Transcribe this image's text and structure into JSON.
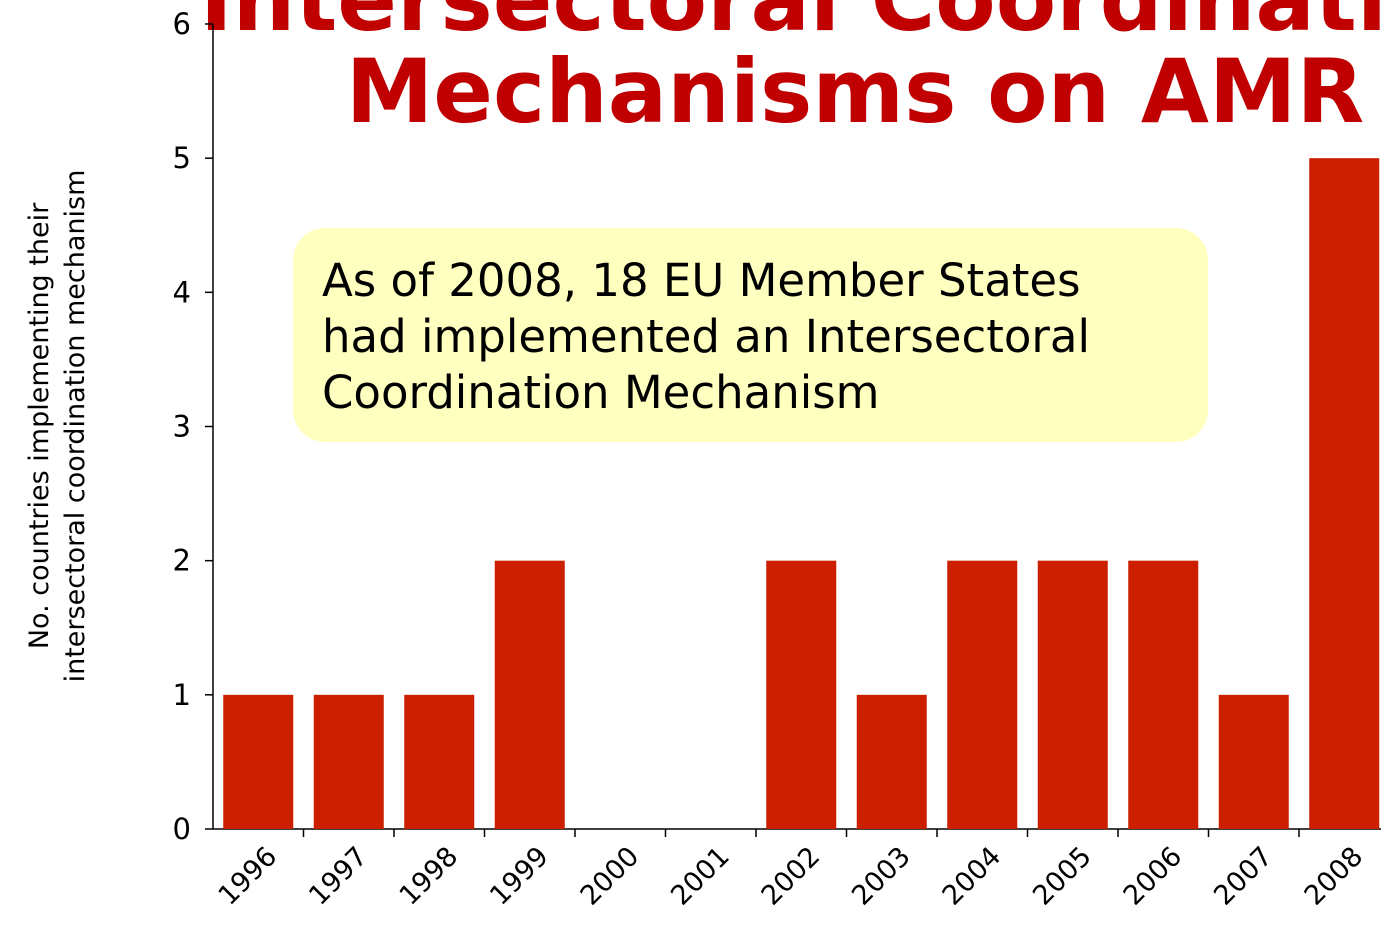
{
  "chart_data": {
    "type": "bar",
    "title": [
      "Intersectoral Coordination",
      "Mechanisms on AMR"
    ],
    "y_label": [
      "No. countries implementing their",
      "intersectoral coordination mechanism"
    ],
    "annotation": [
      "As of 2008, 18 EU Member States",
      "had implemented an Intersectoral",
      "Coordination Mechanism"
    ],
    "categories": [
      "1996",
      "1997",
      "1998",
      "1999",
      "2000",
      "2001",
      "2002",
      "2003",
      "2004",
      "2005",
      "2006",
      "2007",
      "2008"
    ],
    "values": [
      1,
      1,
      1,
      2,
      0,
      0,
      2,
      1,
      2,
      2,
      2,
      1,
      5
    ],
    "color": "#cc1f00",
    "ylim": [
      0,
      6
    ],
    "yticks": [
      0,
      1,
      2,
      3,
      4,
      5,
      6
    ],
    "grid": false
  }
}
